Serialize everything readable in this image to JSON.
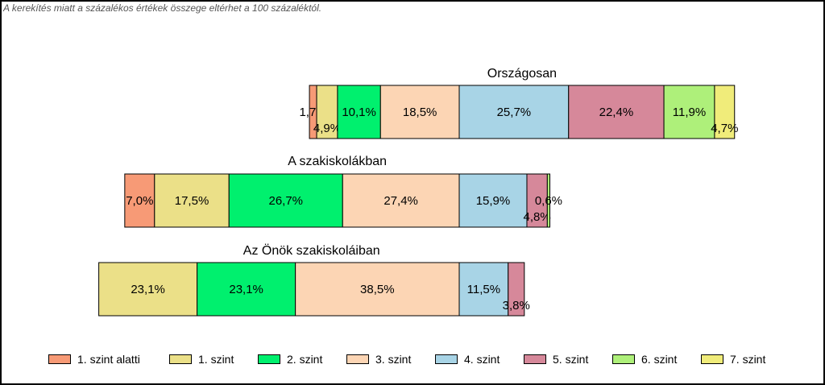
{
  "note": "A kerekítés miatt a  százalékos értékek összege eltérhet a 100 százaléktól.",
  "chart_data": {
    "type": "bar",
    "orientation": "horizontal",
    "stacked": true,
    "bars": [
      {
        "title": "Országosan",
        "values": [
          1.7,
          4.9,
          10.1,
          18.5,
          25.7,
          22.4,
          11.9,
          4.7
        ],
        "labels": [
          "1,7%",
          "4,9%",
          "10,1%",
          "18,5%",
          "25,7%",
          "22,4%",
          "11,9%",
          "4,7%"
        ]
      },
      {
        "title": "A szakiskolákban",
        "values": [
          7.0,
          17.5,
          26.7,
          27.4,
          15.9,
          4.8,
          0.6,
          0
        ],
        "labels": [
          "7,0%",
          "17,5%",
          "26,7%",
          "27,4%",
          "15,9%",
          "4,8%",
          "0,6%",
          ""
        ]
      },
      {
        "title": "Az Önök szakiskoláiban",
        "values": [
          0,
          23.1,
          23.1,
          38.5,
          11.5,
          3.8,
          0,
          0
        ],
        "labels": [
          "",
          "23,1%",
          "23,1%",
          "38,5%",
          "11,5%",
          "3,8%",
          "",
          ""
        ]
      }
    ],
    "series": [
      {
        "name": "1. szint alatti",
        "color": "#f79a76"
      },
      {
        "name": "1. szint",
        "color": "#ebe088"
      },
      {
        "name": "2. szint",
        "color": "#00f06e"
      },
      {
        "name": "3. szint",
        "color": "#fcd5b4"
      },
      {
        "name": "4. szint",
        "color": "#a8d4e6"
      },
      {
        "name": "5. szint",
        "color": "#d6889a"
      },
      {
        "name": "6. szint",
        "color": "#aef07a"
      },
      {
        "name": "7. szint",
        "color": "#f0ec7a"
      }
    ],
    "legend_position": "bottom",
    "grid": false
  }
}
